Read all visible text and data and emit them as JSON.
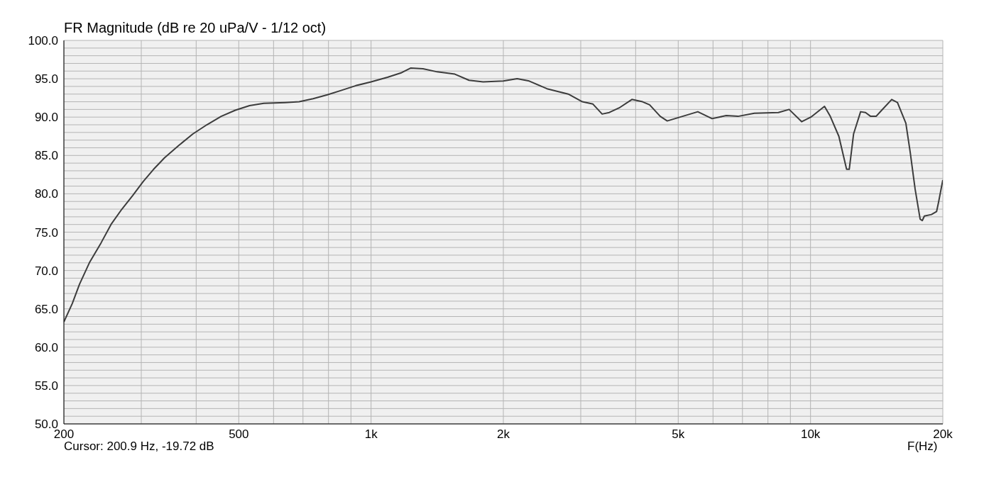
{
  "chart_data": {
    "type": "line",
    "title": "FR Magnitude (dB re 20 uPa/V - 1/12 oct)",
    "xlabel": "F(Hz)",
    "annotations": [
      "Cursor: 200.9 Hz, -19.72 dB"
    ],
    "log": "x",
    "grid": true,
    "marker": "none",
    "line_style": "solid",
    "xlim": [
      200,
      20000
    ],
    "xticks": [
      200,
      {
        "value": 300,
        "label": null
      },
      {
        "value": 400,
        "label": null
      },
      500,
      {
        "value": 600,
        "label": null
      },
      {
        "value": 700,
        "label": null
      },
      {
        "value": 800,
        "label": null
      },
      {
        "value": 900,
        "label": null
      },
      {
        "value": 1000,
        "label": "1k"
      },
      {
        "value": 2000,
        "label": "2k"
      },
      {
        "value": 3000,
        "label": null
      },
      {
        "value": 4000,
        "label": null
      },
      {
        "value": 5000,
        "label": "5k"
      },
      {
        "value": 6000,
        "label": null
      },
      {
        "value": 7000,
        "label": null
      },
      {
        "value": 8000,
        "label": null
      },
      {
        "value": 9000,
        "label": null
      },
      {
        "value": 10000,
        "label": "10k"
      },
      {
        "value": 20000,
        "label": "20k"
      }
    ],
    "ylim": [
      50,
      100
    ],
    "yticks": [
      {
        "value": 50,
        "label": "50.0"
      },
      {
        "value": 51,
        "label": null
      },
      {
        "value": 52,
        "label": null
      },
      {
        "value": 53,
        "label": null
      },
      {
        "value": 54,
        "label": null
      },
      {
        "value": 55,
        "label": "55.0"
      },
      {
        "value": 56,
        "label": null
      },
      {
        "value": 57,
        "label": null
      },
      {
        "value": 58,
        "label": null
      },
      {
        "value": 59,
        "label": null
      },
      {
        "value": 60,
        "label": "60.0"
      },
      {
        "value": 61,
        "label": null
      },
      {
        "value": 62,
        "label": null
      },
      {
        "value": 63,
        "label": null
      },
      {
        "value": 64,
        "label": null
      },
      {
        "value": 65,
        "label": "65.0"
      },
      {
        "value": 66,
        "label": null
      },
      {
        "value": 67,
        "label": null
      },
      {
        "value": 68,
        "label": null
      },
      {
        "value": 69,
        "label": null
      },
      {
        "value": 70,
        "label": "70.0"
      },
      {
        "value": 71,
        "label": null
      },
      {
        "value": 72,
        "label": null
      },
      {
        "value": 73,
        "label": null
      },
      {
        "value": 74,
        "label": null
      },
      {
        "value": 75,
        "label": "75.0"
      },
      {
        "value": 76,
        "label": null
      },
      {
        "value": 77,
        "label": null
      },
      {
        "value": 78,
        "label": null
      },
      {
        "value": 79,
        "label": null
      },
      {
        "value": 80,
        "label": "80.0"
      },
      {
        "value": 81,
        "label": null
      },
      {
        "value": 82,
        "label": null
      },
      {
        "value": 83,
        "label": null
      },
      {
        "value": 84,
        "label": null
      },
      {
        "value": 85,
        "label": "85.0"
      },
      {
        "value": 86,
        "label": null
      },
      {
        "value": 87,
        "label": null
      },
      {
        "value": 88,
        "label": null
      },
      {
        "value": 89,
        "label": null
      },
      {
        "value": 90,
        "label": "90.0"
      },
      {
        "value": 91,
        "label": null
      },
      {
        "value": 92,
        "label": null
      },
      {
        "value": 93,
        "label": null
      },
      {
        "value": 94,
        "label": null
      },
      {
        "value": 95,
        "label": "95.0"
      },
      {
        "value": 96,
        "label": null
      },
      {
        "value": 97,
        "label": null
      },
      {
        "value": 98,
        "label": null
      },
      {
        "value": 99,
        "label": null
      },
      {
        "value": 100,
        "label": "100.0"
      }
    ],
    "x": [
      200,
      209,
      217,
      229,
      243,
      256,
      271,
      287,
      303,
      320,
      339,
      365,
      393,
      423,
      456,
      491,
      529,
      570,
      637,
      686,
      738,
      795,
      857,
      923,
      1000,
      1090,
      1174,
      1232,
      1313,
      1414,
      1551,
      1671,
      1799,
      2000,
      2150,
      2290,
      2514,
      2810,
      3026,
      3198,
      3356,
      3484,
      3669,
      3922,
      4148,
      4304,
      4550,
      4720,
      5540,
      5970,
      6430,
      6840,
      7450,
      8450,
      8940,
      9550,
      10020,
      10760,
      11090,
      11600,
      12080,
      12250,
      12530,
      13000,
      13340,
      13700,
      14100,
      14520,
      15300,
      15770,
      16480,
      16860,
      17300,
      17760,
      17960,
      18160,
      18840,
      19360,
      19560,
      20000
    ],
    "series": [
      {
        "color": "#3c3c3c",
        "values": [
          63.3,
          65.7,
          68.2,
          71.1,
          73.6,
          76.0,
          78.0,
          79.8,
          81.6,
          83.2,
          84.7,
          86.3,
          87.8,
          89.0,
          90.1,
          90.9,
          91.5,
          91.8,
          91.9,
          92.0,
          92.4,
          92.9,
          93.5,
          94.1,
          94.6,
          95.2,
          95.8,
          96.4,
          96.3,
          95.9,
          95.6,
          94.8,
          94.6,
          94.7,
          95.0,
          94.7,
          93.7,
          93.0,
          92.0,
          91.7,
          90.4,
          90.6,
          91.2,
          92.3,
          92.0,
          91.6,
          90.1,
          89.5,
          90.7,
          89.8,
          90.2,
          90.1,
          90.5,
          90.6,
          91.0,
          89.4,
          90.0,
          91.4,
          90.1,
          87.5,
          83.2,
          83.2,
          87.8,
          90.7,
          90.6,
          90.1,
          90.1,
          90.9,
          92.3,
          91.9,
          89.2,
          85.4,
          80.6,
          76.7,
          76.5,
          77.1,
          77.3,
          77.7,
          78.9,
          81.8
        ]
      }
    ]
  }
}
